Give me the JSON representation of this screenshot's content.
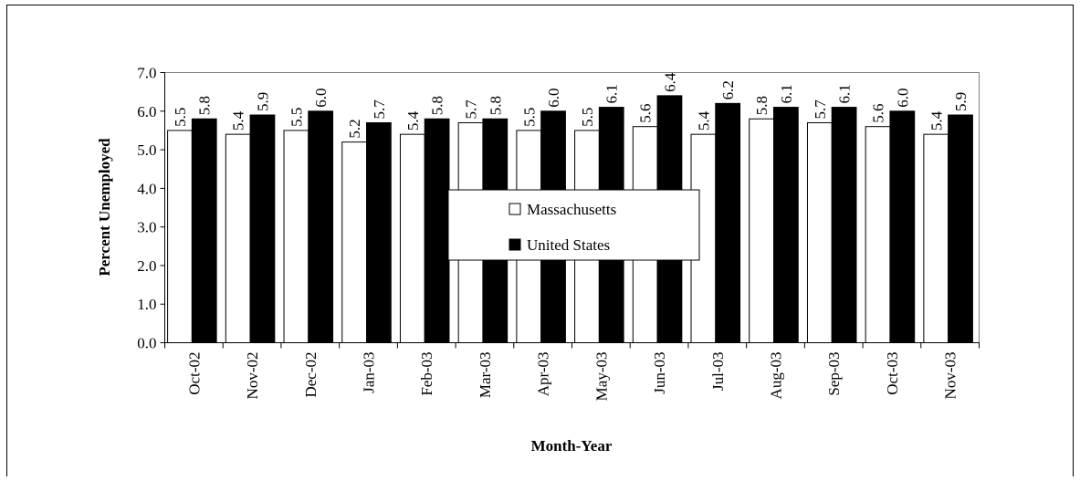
{
  "chart_data": {
    "type": "bar",
    "x_label": "Month-Year",
    "y_label": "Percent Unemployed",
    "categories": [
      "Oct-02",
      "Nov-02",
      "Dec-02",
      "Jan-03",
      "Feb-03",
      "Mar-03",
      "Apr-03",
      "May-03",
      "Jun-03",
      "Jul-03",
      "Aug-03",
      "Sep-03",
      "Oct-03",
      "Nov-03"
    ],
    "series": [
      {
        "name": "Massachusetts",
        "color": "#ffffff",
        "values": [
          5.5,
          5.4,
          5.5,
          5.2,
          5.4,
          5.7,
          5.5,
          5.5,
          5.6,
          5.4,
          5.8,
          5.7,
          5.6,
          5.4
        ],
        "value_labels": [
          "5.5",
          "5.4",
          "5.5",
          "5.2",
          "5.4",
          "5.7",
          "5.5",
          "5.5",
          "5.6",
          "5.4",
          "5.8",
          "5.7",
          "5.6",
          "5.4"
        ]
      },
      {
        "name": "United States",
        "color": "#000000",
        "values": [
          5.8,
          5.9,
          6.0,
          5.7,
          5.8,
          5.8,
          6.0,
          6.1,
          6.4,
          6.2,
          6.1,
          6.1,
          6.0,
          5.9
        ],
        "value_labels": [
          "5.8",
          "5.9",
          "6.0",
          "5.7",
          "5.8",
          "5.8",
          "6.0",
          "6.1",
          "6.4",
          "6.2",
          "6.1",
          "6.1",
          "6.0",
          "5.9"
        ]
      }
    ],
    "ylim": [
      0,
      7
    ],
    "yticks": [
      {
        "value": 0,
        "label": "0.0"
      },
      {
        "value": 1,
        "label": "1.0"
      },
      {
        "value": 2,
        "label": "2.0"
      },
      {
        "value": 3,
        "label": "3.0"
      },
      {
        "value": 4,
        "label": "4.0"
      },
      {
        "value": 5,
        "label": "5.0"
      },
      {
        "value": 6,
        "label": "6.0"
      },
      {
        "value": 7,
        "label": "7.0"
      }
    ],
    "legend": "center"
  }
}
